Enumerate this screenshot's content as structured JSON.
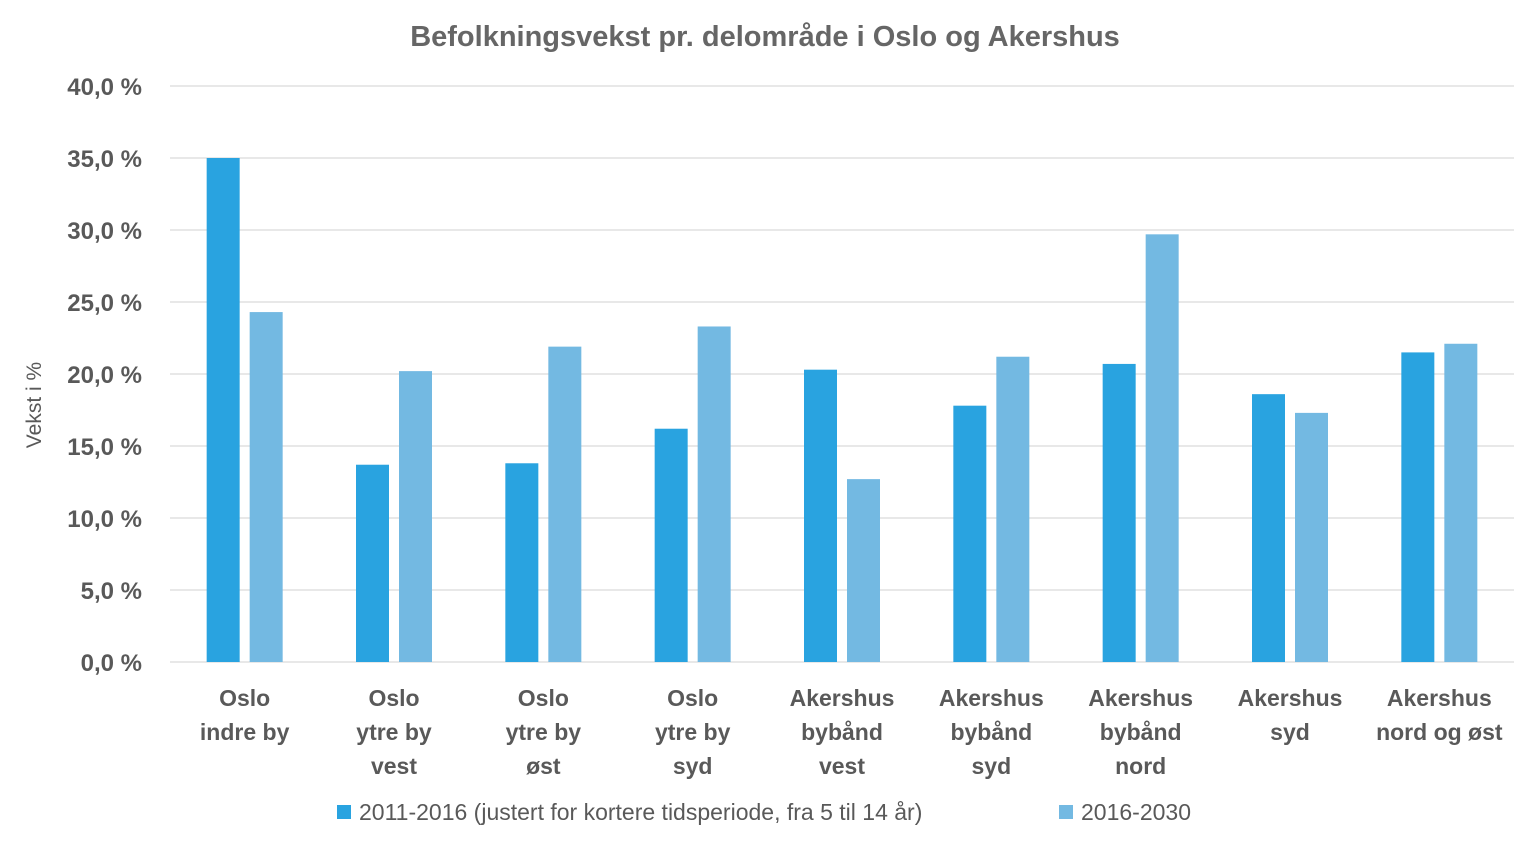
{
  "chart_data": {
    "type": "bar",
    "title": "Befolkningsvekst pr. delområde i Oslo og Akershus",
    "xlabel": "",
    "ylabel": "Vekst i %",
    "ylim": [
      0,
      40
    ],
    "yticks": [
      "0,0 %",
      "5,0 %",
      "10,0 %",
      "15,0 %",
      "20,0 %",
      "25,0 %",
      "30,0 %",
      "35,0 %",
      "40,0 %"
    ],
    "grid": true,
    "legend_position": "bottom",
    "categories": [
      [
        "Oslo",
        "indre by"
      ],
      [
        "Oslo",
        "ytre by",
        "vest"
      ],
      [
        "Oslo",
        "ytre by",
        "øst"
      ],
      [
        "Oslo",
        "ytre by",
        "syd"
      ],
      [
        "Akershus",
        "bybånd",
        "vest"
      ],
      [
        "Akershus",
        "bybånd",
        "syd"
      ],
      [
        "Akershus",
        "bybånd",
        "nord"
      ],
      [
        "Akershus",
        "syd"
      ],
      [
        "Akershus",
        "nord og øst"
      ]
    ],
    "series": [
      {
        "name": "2011-2016 (justert for kortere tidsperiode, fra 5 til 14 år)",
        "color": "#29a3e0",
        "values": [
          35.0,
          13.7,
          13.8,
          16.2,
          20.3,
          17.8,
          20.7,
          18.6,
          21.5
        ]
      },
      {
        "name": "2016-2030",
        "color": "#73b9e2",
        "values": [
          24.3,
          20.2,
          21.9,
          23.3,
          12.7,
          21.2,
          29.7,
          17.3,
          22.1
        ]
      }
    ]
  }
}
